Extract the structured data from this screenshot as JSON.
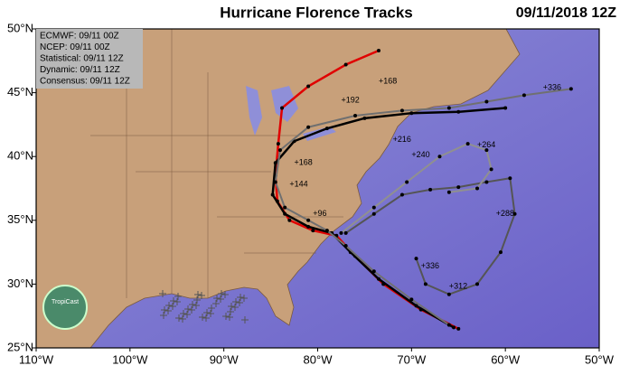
{
  "header": {
    "title": "Hurricane Florence Tracks",
    "date": "09/11/2018 12Z"
  },
  "legend": [
    "ECMWF: 09/11 00Z",
    "NCEP: 09/11 00Z",
    "Statistical: 09/11 12Z",
    "Dynamic: 09/11 12Z",
    "Consensus: 09/11 12Z"
  ],
  "logo": "TropiCast",
  "map": {
    "lonlim": [
      -110,
      -50
    ],
    "latlim": [
      25,
      50
    ],
    "lon_ticks": [
      {
        "value": -110,
        "label": "110°W"
      },
      {
        "value": -100,
        "label": "100°W"
      },
      {
        "value": -90,
        "label": "90°W"
      },
      {
        "value": -80,
        "label": "80°W"
      },
      {
        "value": -70,
        "label": "70°W"
      },
      {
        "value": -60,
        "label": "60°W"
      },
      {
        "value": -50,
        "label": "50°W"
      }
    ],
    "lat_ticks": [
      {
        "value": 25,
        "label": "25°N"
      },
      {
        "value": 30,
        "label": "30°N"
      },
      {
        "value": 35,
        "label": "35°N"
      },
      {
        "value": 40,
        "label": "40°N"
      },
      {
        "value": 45,
        "label": "45°N"
      },
      {
        "value": 50,
        "label": "50°N"
      }
    ],
    "tracks": [
      {
        "color": "#e00000",
        "lon": [
          -65,
          -69,
          -73,
          -76,
          -78,
          -80.5,
          -83,
          -84.3,
          -84.5,
          -84.2,
          -83.8,
          -81,
          -77,
          -73.5
        ],
        "lat": [
          26.5,
          28,
          30,
          32.2,
          33.8,
          34.2,
          35,
          36.5,
          38.5,
          41,
          43.8,
          45.5,
          47.2,
          48.3
        ]
      },
      {
        "color": "#000000",
        "lon": [
          -65.5,
          -69.5,
          -73.5,
          -76.5,
          -78.5,
          -81,
          -83.5,
          -84.8,
          -84.5,
          -82.5,
          -79,
          -75,
          -70,
          -65,
          -60
        ],
        "lat": [
          26.6,
          28.3,
          30.4,
          32.5,
          34,
          34.5,
          35.5,
          37,
          39.5,
          41.2,
          42.2,
          43,
          43.4,
          43.5,
          43.8
        ]
      },
      {
        "color": "#707070",
        "lon": [
          -66,
          -70,
          -74,
          -77,
          -79,
          -81,
          -83.5,
          -84.5,
          -84,
          -81,
          -76,
          -71,
          -66,
          -62,
          -58,
          -53
        ],
        "lat": [
          26.8,
          28.8,
          31,
          33,
          34.2,
          35,
          36,
          38,
          40.5,
          42.3,
          43.2,
          43.6,
          43.8,
          44.3,
          44.8,
          45.3
        ]
      },
      {
        "color": "#555555",
        "lon": [
          -77,
          -74,
          -71,
          -68,
          -65,
          -62,
          -59.5,
          -59,
          -60.5,
          -63,
          -66,
          -68.5,
          -69.5
        ],
        "lat": [
          34,
          35.5,
          37,
          37.4,
          37.6,
          38,
          38.3,
          35.5,
          32.5,
          30,
          29.2,
          30,
          32
        ]
      },
      {
        "color": "#909090",
        "lon": [
          -77.5,
          -74,
          -70.5,
          -67,
          -64,
          -62,
          -61.5,
          -63,
          -66
        ],
        "lat": [
          34,
          36,
          38,
          40,
          41,
          40.5,
          39,
          37.5,
          37.2
        ]
      }
    ],
    "hour_labels": [
      {
        "lon": -73.5,
        "lat": 45.9,
        "text": "+168"
      },
      {
        "lon": -77.5,
        "lat": 44.4,
        "text": "+192"
      },
      {
        "lon": -72,
        "lat": 41.3,
        "text": "+216"
      },
      {
        "lon": -70,
        "lat": 40.1,
        "text": "+240"
      },
      {
        "lon": -56,
        "lat": 45.4,
        "text": "+336"
      },
      {
        "lon": -63,
        "lat": 40.9,
        "text": "+264"
      },
      {
        "lon": -61,
        "lat": 35.5,
        "text": "+288"
      },
      {
        "lon": -66,
        "lat": 29.8,
        "text": "+312"
      },
      {
        "lon": -69,
        "lat": 31.4,
        "text": "+336"
      },
      {
        "lon": -80.5,
        "lat": 35.5,
        "text": "+96"
      },
      {
        "lon": -83,
        "lat": 37.8,
        "text": "+144"
      },
      {
        "lon": -82.5,
        "lat": 39.5,
        "text": "+168"
      }
    ]
  }
}
